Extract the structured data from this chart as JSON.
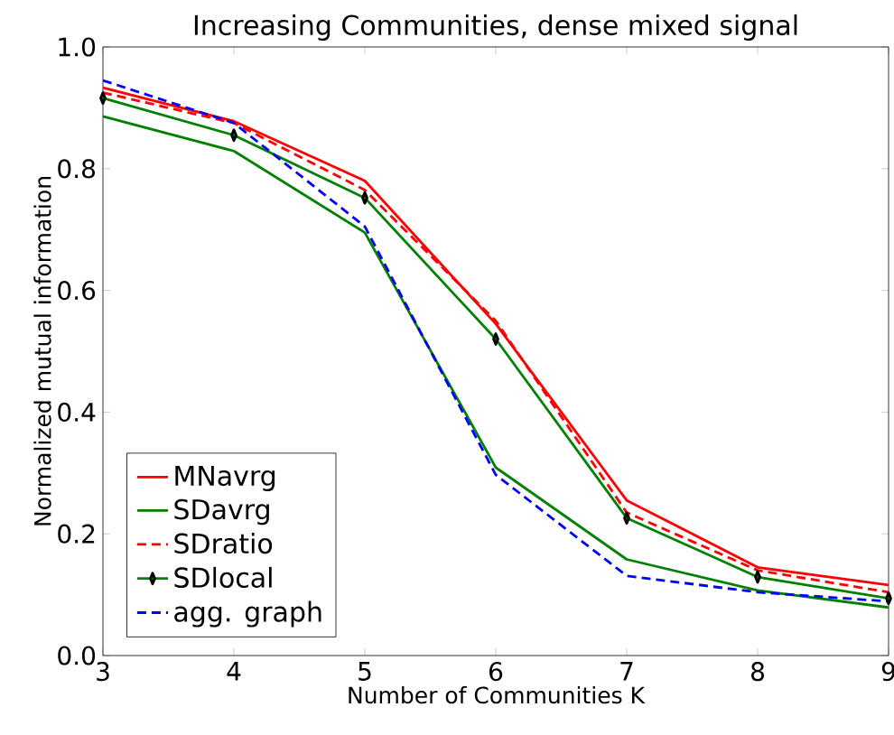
{
  "chart_data": {
    "type": "line",
    "title": "Increasing Communities, dense mixed signal",
    "xlabel": "Number of Communities K",
    "ylabel": "Normalized mutual information",
    "x": [
      3,
      4,
      5,
      6,
      7,
      8,
      9
    ],
    "series": [
      {
        "name": "MNavrg",
        "color": "#ff0000",
        "line_style": "solid",
        "marker": "none",
        "values": [
          0.933,
          0.878,
          0.78,
          0.545,
          0.255,
          0.145,
          0.116
        ]
      },
      {
        "name": "SDavrg",
        "color": "#008000",
        "line_style": "solid",
        "marker": "none",
        "values": [
          0.886,
          0.829,
          0.695,
          0.309,
          0.158,
          0.107,
          0.079
        ]
      },
      {
        "name": "SDratio",
        "color": "#ff0000",
        "line_style": "dashed",
        "marker": "none",
        "values": [
          0.925,
          0.875,
          0.765,
          0.55,
          0.235,
          0.14,
          0.104
        ]
      },
      {
        "name": "SDlocal",
        "color": "#008000",
        "line_style": "solid",
        "marker": "diamond",
        "values": [
          0.916,
          0.855,
          0.752,
          0.52,
          0.226,
          0.129,
          0.094
        ]
      },
      {
        "name": "agg. graph",
        "color": "#0000ff",
        "line_style": "dashed",
        "marker": "none",
        "values": [
          0.945,
          0.875,
          0.705,
          0.297,
          0.131,
          0.104,
          0.089
        ]
      }
    ],
    "xlim": [
      3,
      9
    ],
    "ylim": [
      0.0,
      1.0
    ],
    "xticks": [
      3,
      4,
      5,
      6,
      7,
      8,
      9
    ],
    "yticks": [
      {
        "value": 0,
        "label": "0.0"
      },
      {
        "value": 0.2,
        "label": "0.2"
      },
      {
        "value": 0.4,
        "label": "0.4"
      },
      {
        "value": 0.6,
        "label": "0.6"
      },
      {
        "value": 0.8,
        "label": "0.8"
      },
      {
        "value": 1.0,
        "label": "1.0"
      }
    ],
    "grid": false,
    "legend": "bottom left"
  }
}
